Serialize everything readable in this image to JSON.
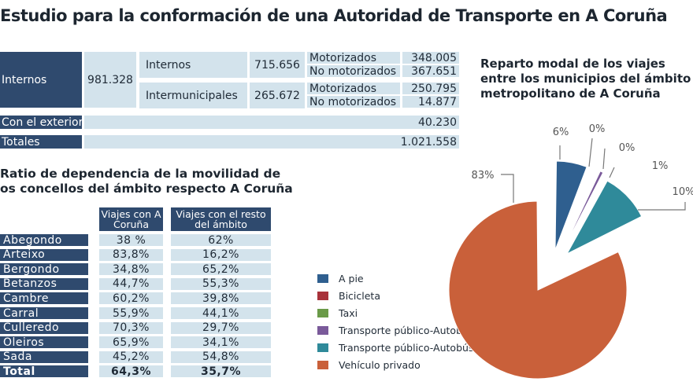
{
  "title": "Estudio para la conformación de una Autoridad de Transporte en A Coruña",
  "trips_table": {
    "internos_label": "Internos",
    "internos_total": "981.328",
    "sub": [
      {
        "label": "Internos",
        "value": "715.656",
        "split": [
          {
            "label": "Motorizados",
            "value": "348.005"
          },
          {
            "label": "No motorizados",
            "value": "367.651"
          }
        ]
      },
      {
        "label": "Intermunicipales",
        "value": "265.672",
        "split": [
          {
            "label": "Motorizados",
            "value": "250.795"
          },
          {
            "label": "No motorizados",
            "value": "14.877"
          }
        ]
      }
    ],
    "exterior_label": "Con el exterior",
    "exterior_value": "40.230",
    "totales_label": "Totales",
    "totales_value": "1.021.558"
  },
  "ratio_table": {
    "title_line1": "Ratio de dependencia de la movilidad de",
    "title_line2": "os concellos del ámbito respecto A Coruña",
    "headers": [
      "Viajes con A Coruña",
      "Viajes con el resto del ámbito"
    ],
    "rows": [
      {
        "name": "Abegondo",
        "a": "38 %",
        "b": "62%"
      },
      {
        "name": "Arteixo",
        "a": "83,8%",
        "b": "16,2%"
      },
      {
        "name": "Bergondo",
        "a": "34,8%",
        "b": "65,2%"
      },
      {
        "name": "Betanzos",
        "a": "44,7%",
        "b": "55,3%"
      },
      {
        "name": "Cambre",
        "a": "60,2%",
        "b": "39,8%"
      },
      {
        "name": "Carral",
        "a": "55,9%",
        "b": "44,1%"
      },
      {
        "name": "Culleredo",
        "a": "70,3%",
        "b": "29,7%"
      },
      {
        "name": "Oleiros",
        "a": "65,9%",
        "b": "34,1%"
      },
      {
        "name": "Sada",
        "a": "45,2%",
        "b": "54,8%"
      },
      {
        "name": "Total",
        "a": "64,3%",
        "b": "35,7%"
      }
    ]
  },
  "chart_data": {
    "type": "pie",
    "title": "Reparto modal de los viajes entre los municipios del ámbito metropolitano de A Coruña",
    "title_lines": [
      "Reparto modal de los viajes",
      "entre los municipios del ámbito",
      "metropolitano de A Coruña"
    ],
    "legend_placement": "left",
    "slices": [
      {
        "label": "A pie",
        "value": 6,
        "value_label": "6%",
        "color": "#2f5f8f"
      },
      {
        "label": "Bicicleta",
        "value": 0,
        "value_label": "0%",
        "color": "#a8323a"
      },
      {
        "label": "Taxi",
        "value": 0,
        "value_label": "0%",
        "color": "#6a9a48"
      },
      {
        "label": "Transporte público-Autobús otros",
        "value": 1,
        "value_label": "1%",
        "color": "#7a5a9a"
      },
      {
        "label": "Transporte público-Autobús regular",
        "value": 10,
        "value_label": "10%",
        "color": "#2f8a9a"
      },
      {
        "label": "Vehículo privado",
        "value": 83,
        "value_label": "83%",
        "color": "#c9603a"
      }
    ]
  },
  "colors": {
    "dark_cell": "#2f4a6e",
    "light_cell": "#d3e3ec"
  }
}
